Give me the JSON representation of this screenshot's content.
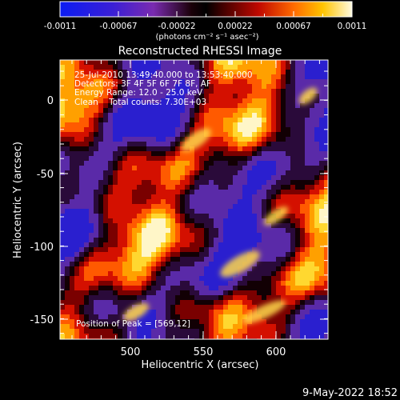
{
  "colorbar": {
    "tick_labels": [
      "-0.0011",
      "-0.00067",
      "-0.00022",
      "0.00022",
      "0.00067",
      "0.0011"
    ],
    "units": "(photons cm⁻² s⁻¹ asec⁻²)"
  },
  "title": "Reconstructed RHESSI Image",
  "info": {
    "line1": "25-Jul-2010 13:49:40.000 to 13:53:40.000",
    "line2": "Detectors: 3F 4F 5F 6F 7F 8F, AF",
    "line3": "Energy Range: 12.0 - 25.0 keV",
    "line4": "Clean    Total counts: 7.30E+03"
  },
  "peak_label": "Position of Peak = [569,12]",
  "x_axis": {
    "label": "Heliocentric X (arcsec)",
    "tick_labels": [
      "500",
      "550",
      "600"
    ]
  },
  "y_axis": {
    "label": "Heliocentric Y (arcsec)",
    "tick_labels": [
      "0",
      "-50",
      "-100",
      "-150"
    ]
  },
  "timestamp": "9-May-2022 18:52"
}
